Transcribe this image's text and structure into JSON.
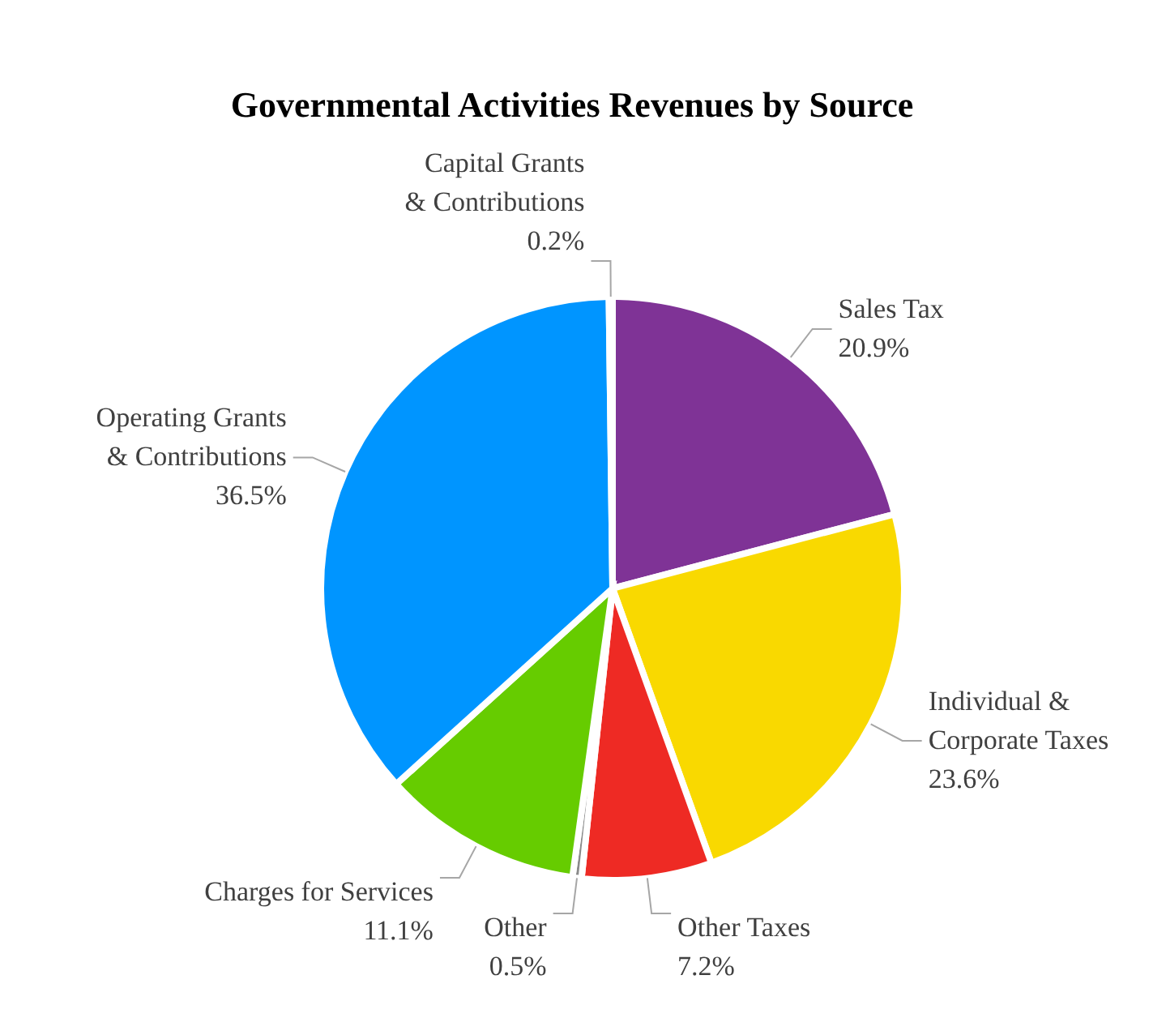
{
  "chart_data": {
    "type": "pie",
    "title": "Governmental Activities Revenues by Source",
    "categories": [
      "Sales Tax",
      "Individual &\nCorporate Taxes",
      "Other Taxes",
      "Other",
      "Charges for Services",
      "Operating Grants\n& Contributions",
      "Capital Grants\n& Contributions"
    ],
    "values": [
      20.9,
      23.6,
      7.2,
      0.5,
      11.1,
      36.5,
      0.2
    ],
    "colors": [
      "#7f3396",
      "#f9d900",
      "#ee2a24",
      "#8a8a8a",
      "#66cc00",
      "#0095ff",
      "#f0a000"
    ],
    "value_labels": [
      "20.9%",
      "23.6%",
      "7.2%",
      "0.5%",
      "11.1%",
      "36.5%",
      "0.2%"
    ]
  }
}
